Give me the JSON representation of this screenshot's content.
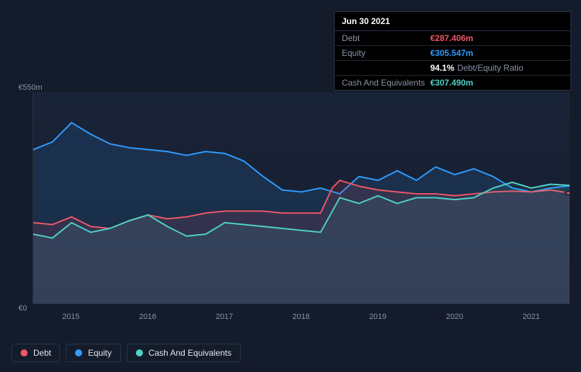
{
  "tooltip": {
    "date": "Jun 30 2021",
    "rows": [
      {
        "label": "Debt",
        "value": "€287.406m",
        "cls": "val-debt"
      },
      {
        "label": "Equity",
        "value": "€305.547m",
        "cls": "val-equity"
      },
      {
        "label": "",
        "value": "94.1%",
        "cls": "val-ratio",
        "suffix": "Debt/Equity Ratio"
      },
      {
        "label": "Cash And Equivalents",
        "value": "€307.490m",
        "cls": "val-cash"
      }
    ]
  },
  "chart": {
    "type": "area-line",
    "background_top": "#1a2438",
    "background_bottom": "#151d2e",
    "grid_color": "#2a3445",
    "y_axis": {
      "min": 0,
      "max": 550,
      "ticks": [
        {
          "value": 0,
          "label": "€0"
        },
        {
          "value": 550,
          "label": "€550m"
        }
      ],
      "label_fontsize": 11,
      "label_color": "#8a94a6"
    },
    "x_axis": {
      "min": 2014.5,
      "max": 2021.5,
      "ticks": [
        2015,
        2016,
        2017,
        2018,
        2019,
        2020,
        2021
      ],
      "label_fontsize": 11,
      "label_color": "#8a94a6"
    },
    "series": [
      {
        "name": "Equity",
        "color": "#2e9bff",
        "fill": "rgba(46,155,255,0.12)",
        "line_width": 2,
        "points": [
          [
            2014.5,
            400
          ],
          [
            2014.75,
            420
          ],
          [
            2015.0,
            470
          ],
          [
            2015.25,
            440
          ],
          [
            2015.5,
            415
          ],
          [
            2015.75,
            405
          ],
          [
            2016.0,
            400
          ],
          [
            2016.25,
            395
          ],
          [
            2016.5,
            385
          ],
          [
            2016.75,
            395
          ],
          [
            2017.0,
            390
          ],
          [
            2017.25,
            370
          ],
          [
            2017.5,
            330
          ],
          [
            2017.75,
            295
          ],
          [
            2018.0,
            290
          ],
          [
            2018.25,
            300
          ],
          [
            2018.5,
            285
          ],
          [
            2018.75,
            330
          ],
          [
            2019.0,
            320
          ],
          [
            2019.25,
            345
          ],
          [
            2019.5,
            320
          ],
          [
            2019.75,
            355
          ],
          [
            2020.0,
            335
          ],
          [
            2020.25,
            350
          ],
          [
            2020.5,
            330
          ],
          [
            2020.75,
            300
          ],
          [
            2021.0,
            290
          ],
          [
            2021.25,
            300
          ],
          [
            2021.5,
            306
          ]
        ]
      },
      {
        "name": "Debt",
        "color": "#ef5667",
        "fill": "rgba(239,86,103,0.12)",
        "line_width": 2,
        "end_marker": true,
        "points": [
          [
            2014.5,
            210
          ],
          [
            2014.75,
            205
          ],
          [
            2015.0,
            225
          ],
          [
            2015.25,
            200
          ],
          [
            2015.5,
            195
          ],
          [
            2015.75,
            215
          ],
          [
            2016.0,
            230
          ],
          [
            2016.25,
            220
          ],
          [
            2016.5,
            225
          ],
          [
            2016.75,
            235
          ],
          [
            2017.0,
            240
          ],
          [
            2017.25,
            240
          ],
          [
            2017.5,
            240
          ],
          [
            2017.75,
            235
          ],
          [
            2018.0,
            235
          ],
          [
            2018.25,
            235
          ],
          [
            2018.4,
            300
          ],
          [
            2018.5,
            320
          ],
          [
            2018.75,
            305
          ],
          [
            2019.0,
            295
          ],
          [
            2019.25,
            290
          ],
          [
            2019.5,
            285
          ],
          [
            2019.75,
            285
          ],
          [
            2020.0,
            280
          ],
          [
            2020.25,
            285
          ],
          [
            2020.5,
            290
          ],
          [
            2020.75,
            292
          ],
          [
            2021.0,
            290
          ],
          [
            2021.25,
            295
          ],
          [
            2021.5,
            287
          ]
        ]
      },
      {
        "name": "Cash And Equivalents",
        "color": "#4fd1c5",
        "fill": "rgba(79,209,197,0.10)",
        "line_width": 2,
        "points": [
          [
            2014.5,
            180
          ],
          [
            2014.75,
            170
          ],
          [
            2015.0,
            210
          ],
          [
            2015.25,
            185
          ],
          [
            2015.5,
            195
          ],
          [
            2015.75,
            215
          ],
          [
            2016.0,
            230
          ],
          [
            2016.25,
            200
          ],
          [
            2016.5,
            175
          ],
          [
            2016.75,
            180
          ],
          [
            2017.0,
            210
          ],
          [
            2017.25,
            205
          ],
          [
            2017.5,
            200
          ],
          [
            2017.75,
            195
          ],
          [
            2018.0,
            190
          ],
          [
            2018.25,
            185
          ],
          [
            2018.5,
            275
          ],
          [
            2018.75,
            260
          ],
          [
            2019.0,
            280
          ],
          [
            2019.25,
            260
          ],
          [
            2019.5,
            275
          ],
          [
            2019.75,
            275
          ],
          [
            2020.0,
            270
          ],
          [
            2020.25,
            275
          ],
          [
            2020.5,
            300
          ],
          [
            2020.75,
            315
          ],
          [
            2021.0,
            300
          ],
          [
            2021.25,
            310
          ],
          [
            2021.5,
            307
          ]
        ]
      }
    ]
  },
  "legend": {
    "items": [
      {
        "label": "Debt",
        "color": "#ef5667"
      },
      {
        "label": "Equity",
        "color": "#2e9bff"
      },
      {
        "label": "Cash And Equivalents",
        "color": "#4fd1c5"
      }
    ]
  }
}
